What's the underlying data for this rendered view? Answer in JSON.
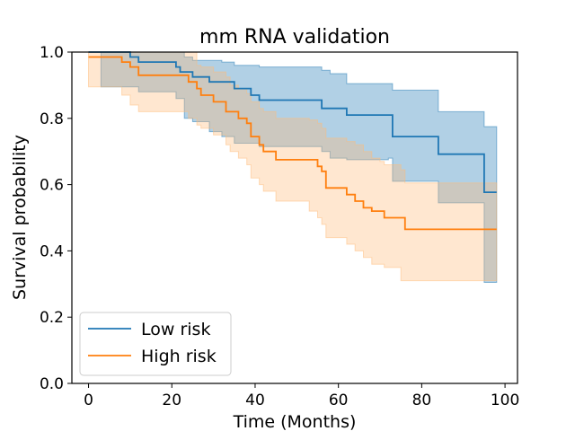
{
  "chart_data": {
    "type": "line",
    "subtype": "kaplan-meier survival curves with confidence bands",
    "title": "mm RNA validation",
    "xlabel": "Time (Months)",
    "ylabel": "Survival probability",
    "xlim": [
      -4,
      103
    ],
    "ylim": [
      0,
      1
    ],
    "xticks": [
      0,
      20,
      40,
      60,
      80,
      100
    ],
    "yticks": [
      0.0,
      0.2,
      0.4,
      0.6,
      0.8,
      1.0
    ],
    "xtick_labels": [
      "0",
      "20",
      "40",
      "60",
      "80",
      "100"
    ],
    "ytick_labels": [
      "0.0",
      "0.2",
      "0.4",
      "0.6",
      "0.8",
      "1.0"
    ],
    "grid": false,
    "legend_position": "lower-left",
    "series": [
      {
        "name": "Low risk",
        "color": "#1f77b4",
        "band_color": "#1f77b4",
        "steps": [
          [
            0,
            1.0
          ],
          [
            10,
            0.985
          ],
          [
            12,
            0.97
          ],
          [
            21,
            0.955
          ],
          [
            22,
            0.94
          ],
          [
            25,
            0.925
          ],
          [
            29,
            0.91
          ],
          [
            32,
            0.91
          ],
          [
            35,
            0.89
          ],
          [
            39,
            0.87
          ],
          [
            41,
            0.855
          ],
          [
            56,
            0.83
          ],
          [
            62,
            0.81
          ],
          [
            72,
            0.81
          ],
          [
            73,
            0.745
          ],
          [
            84,
            0.692
          ],
          [
            95,
            0.577
          ],
          [
            98,
            0.577
          ]
        ],
        "ci_lower": [
          [
            0,
            1.0
          ],
          [
            3,
            0.895
          ],
          [
            10,
            0.895
          ],
          [
            12,
            0.88
          ],
          [
            21,
            0.86
          ],
          [
            23,
            0.8
          ],
          [
            25,
            0.79
          ],
          [
            29,
            0.76
          ],
          [
            32,
            0.745
          ],
          [
            35,
            0.725
          ],
          [
            39,
            0.725
          ],
          [
            41,
            0.715
          ],
          [
            56,
            0.7
          ],
          [
            58,
            0.68
          ],
          [
            62,
            0.675
          ],
          [
            72,
            0.68
          ],
          [
            73,
            0.61
          ],
          [
            84,
            0.545
          ],
          [
            95,
            0.305
          ],
          [
            98,
            0.305
          ]
        ],
        "ci_upper": [
          [
            0,
            1.0
          ],
          [
            22,
            1.0
          ],
          [
            23,
            0.985
          ],
          [
            25,
            0.975
          ],
          [
            32,
            0.97
          ],
          [
            35,
            0.96
          ],
          [
            39,
            0.96
          ],
          [
            41,
            0.955
          ],
          [
            56,
            0.945
          ],
          [
            58,
            0.935
          ],
          [
            62,
            0.905
          ],
          [
            72,
            0.905
          ],
          [
            73,
            0.885
          ],
          [
            84,
            0.82
          ],
          [
            95,
            0.775
          ],
          [
            98,
            0.775
          ]
        ]
      },
      {
        "name": "High risk",
        "color": "#ff7f0e",
        "band_color": "#ffbb78",
        "steps": [
          [
            0,
            0.985
          ],
          [
            8,
            0.97
          ],
          [
            10,
            0.955
          ],
          [
            12,
            0.93
          ],
          [
            20,
            0.93
          ],
          [
            24,
            0.91
          ],
          [
            26,
            0.89
          ],
          [
            27,
            0.87
          ],
          [
            30,
            0.85
          ],
          [
            33,
            0.82
          ],
          [
            34,
            0.82
          ],
          [
            36,
            0.8
          ],
          [
            38,
            0.785
          ],
          [
            39,
            0.745
          ],
          [
            41,
            0.72
          ],
          [
            42,
            0.7
          ],
          [
            45,
            0.675
          ],
          [
            53,
            0.675
          ],
          [
            55,
            0.655
          ],
          [
            56,
            0.64
          ],
          [
            57,
            0.59
          ],
          [
            62,
            0.57
          ],
          [
            64,
            0.55
          ],
          [
            66,
            0.53
          ],
          [
            68,
            0.52
          ],
          [
            70,
            0.52
          ],
          [
            71,
            0.5
          ],
          [
            75,
            0.5
          ],
          [
            76,
            0.465
          ],
          [
            98,
            0.465
          ]
        ],
        "ci_lower": [
          [
            0,
            0.895
          ],
          [
            8,
            0.87
          ],
          [
            10,
            0.84
          ],
          [
            12,
            0.82
          ],
          [
            20,
            0.82
          ],
          [
            24,
            0.8
          ],
          [
            26,
            0.78
          ],
          [
            27,
            0.77
          ],
          [
            30,
            0.75
          ],
          [
            33,
            0.72
          ],
          [
            34,
            0.7
          ],
          [
            36,
            0.68
          ],
          [
            38,
            0.66
          ],
          [
            39,
            0.62
          ],
          [
            41,
            0.6
          ],
          [
            42,
            0.58
          ],
          [
            45,
            0.55
          ],
          [
            53,
            0.52
          ],
          [
            55,
            0.5
          ],
          [
            56,
            0.48
          ],
          [
            57,
            0.44
          ],
          [
            62,
            0.42
          ],
          [
            64,
            0.4
          ],
          [
            66,
            0.38
          ],
          [
            68,
            0.36
          ],
          [
            70,
            0.36
          ],
          [
            71,
            0.35
          ],
          [
            75,
            0.31
          ],
          [
            76,
            0.31
          ],
          [
            98,
            0.31
          ]
        ],
        "ci_upper": [
          [
            0,
            1.0
          ],
          [
            24,
            1.0
          ],
          [
            26,
            0.96
          ],
          [
            27,
            0.955
          ],
          [
            30,
            0.94
          ],
          [
            33,
            0.925
          ],
          [
            34,
            0.9
          ],
          [
            36,
            0.89
          ],
          [
            38,
            0.875
          ],
          [
            39,
            0.85
          ],
          [
            41,
            0.83
          ],
          [
            42,
            0.82
          ],
          [
            45,
            0.8
          ],
          [
            53,
            0.795
          ],
          [
            55,
            0.785
          ],
          [
            56,
            0.77
          ],
          [
            57,
            0.74
          ],
          [
            62,
            0.73
          ],
          [
            64,
            0.72
          ],
          [
            66,
            0.7
          ],
          [
            68,
            0.68
          ],
          [
            70,
            0.67
          ],
          [
            71,
            0.66
          ],
          [
            75,
            0.645
          ],
          [
            76,
            0.605
          ],
          [
            98,
            0.605
          ]
        ]
      }
    ]
  }
}
